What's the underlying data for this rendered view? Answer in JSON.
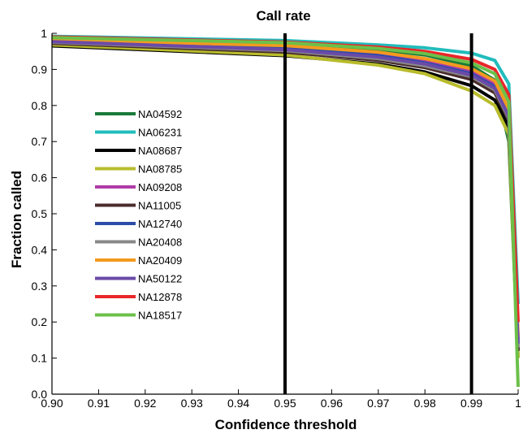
{
  "chart_data": {
    "type": "line",
    "title": "Call rate",
    "xlabel": "Confidence threshold",
    "ylabel": "Fraction called",
    "xlim": [
      0.9,
      1.0
    ],
    "ylim": [
      0.0,
      1.0
    ],
    "x_ticks": [
      "0.90",
      "0.91",
      "0.92",
      "0.93",
      "0.94",
      "0.95",
      "0.96",
      "0.97",
      "0.98",
      "0.99",
      "1"
    ],
    "y_ticks": [
      "0.0",
      "0.1",
      "0.2",
      "0.3",
      "0.4",
      "0.5",
      "0.6",
      "0.7",
      "0.8",
      "0.9",
      "1"
    ],
    "vertical_lines": [
      0.95,
      0.99
    ],
    "legend_position": "left",
    "grid": false,
    "series": [
      {
        "name": "NA04592",
        "color": "#1a7a3a",
        "x": [
          0.9,
          0.95,
          0.97,
          0.98,
          0.99,
          0.995,
          0.998,
          1.0
        ],
        "y": [
          0.985,
          0.972,
          0.955,
          0.94,
          0.91,
          0.87,
          0.7,
          0.1
        ]
      },
      {
        "name": "NA06231",
        "color": "#22bcbc",
        "x": [
          0.9,
          0.95,
          0.97,
          0.98,
          0.99,
          0.995,
          0.998,
          1.0
        ],
        "y": [
          0.992,
          0.98,
          0.968,
          0.96,
          0.945,
          0.925,
          0.86,
          0.25
        ]
      },
      {
        "name": "NA08687",
        "color": "#000000",
        "x": [
          0.9,
          0.95,
          0.97,
          0.98,
          0.99,
          0.995,
          0.998,
          1.0
        ],
        "y": [
          0.965,
          0.938,
          0.915,
          0.893,
          0.855,
          0.815,
          0.74,
          0.12
        ]
      },
      {
        "name": "NA08785",
        "color": "#b8bc2c",
        "x": [
          0.9,
          0.95,
          0.97,
          0.98,
          0.99,
          0.995,
          0.998,
          1.0
        ],
        "y": [
          0.968,
          0.94,
          0.912,
          0.888,
          0.84,
          0.8,
          0.72,
          0.1
        ]
      },
      {
        "name": "NA09208",
        "color": "#b03ca8",
        "x": [
          0.9,
          0.95,
          0.97,
          0.98,
          0.99,
          0.995,
          0.998,
          1.0
        ],
        "y": [
          0.98,
          0.962,
          0.942,
          0.923,
          0.895,
          0.86,
          0.78,
          0.15
        ]
      },
      {
        "name": "NA11005",
        "color": "#4a2c2c",
        "x": [
          0.9,
          0.95,
          0.97,
          0.98,
          0.99,
          0.995,
          0.998,
          1.0
        ],
        "y": [
          0.972,
          0.948,
          0.925,
          0.905,
          0.872,
          0.835,
          0.76,
          0.12
        ]
      },
      {
        "name": "NA12740",
        "color": "#2a4ca8",
        "x": [
          0.9,
          0.95,
          0.97,
          0.98,
          0.99,
          0.995,
          0.998,
          1.0
        ],
        "y": [
          0.978,
          0.958,
          0.938,
          0.918,
          0.888,
          0.852,
          0.77,
          0.14
        ]
      },
      {
        "name": "NA20408",
        "color": "#888888",
        "x": [
          0.9,
          0.95,
          0.97,
          0.98,
          0.99,
          0.995,
          0.998,
          1.0
        ],
        "y": [
          0.975,
          0.952,
          0.93,
          0.91,
          0.88,
          0.843,
          0.765,
          0.13
        ]
      },
      {
        "name": "NA20409",
        "color": "#f39a1e",
        "x": [
          0.9,
          0.95,
          0.97,
          0.98,
          0.99,
          0.995,
          0.998,
          1.0
        ],
        "y": [
          0.982,
          0.966,
          0.948,
          0.93,
          0.902,
          0.868,
          0.79,
          0.16
        ]
      },
      {
        "name": "NA50122",
        "color": "#6a4aa8",
        "x": [
          0.9,
          0.95,
          0.97,
          0.98,
          0.99,
          0.995,
          0.998,
          1.0
        ],
        "y": [
          0.977,
          0.955,
          0.934,
          0.915,
          0.884,
          0.848,
          0.77,
          0.14
        ]
      },
      {
        "name": "NA12878",
        "color": "#e8262a",
        "x": [
          0.9,
          0.95,
          0.97,
          0.98,
          0.99,
          0.995,
          0.998,
          1.0
        ],
        "y": [
          0.99,
          0.976,
          0.962,
          0.95,
          0.928,
          0.9,
          0.83,
          0.2
        ]
      },
      {
        "name": "NA18517",
        "color": "#6cc04a",
        "x": [
          0.9,
          0.95,
          0.97,
          0.98,
          0.99,
          0.995,
          0.998,
          1.0
        ],
        "y": [
          0.988,
          0.974,
          0.958,
          0.944,
          0.918,
          0.888,
          0.81,
          0.02
        ]
      }
    ]
  }
}
